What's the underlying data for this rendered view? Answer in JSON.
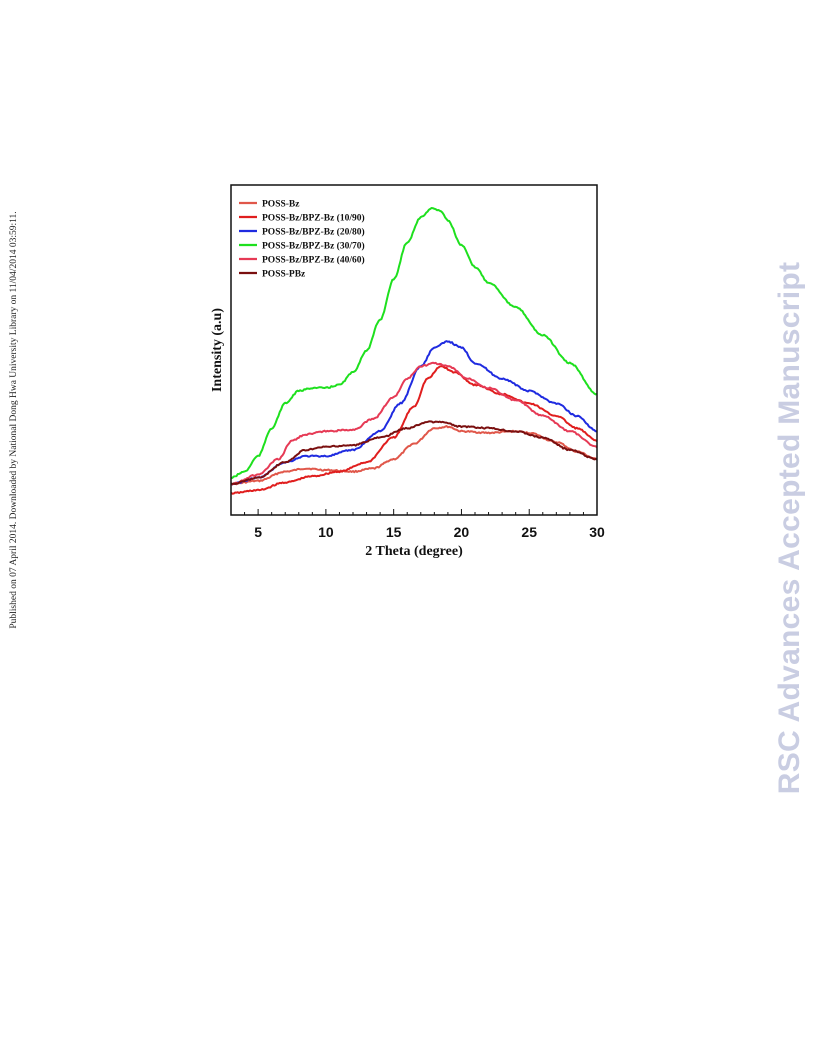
{
  "side_note": "Published on 07 April 2014. Downloaded by National Dong Hwa University Library on 11/04/2014 03:59:11.",
  "watermark": "RSC Advances Accepted Manuscript",
  "chart_data": {
    "type": "line",
    "title": "",
    "xlabel": "2 Theta (degree)",
    "ylabel": "Intensity (a.u)",
    "xlim": [
      3,
      30
    ],
    "ylim": [
      0,
      100
    ],
    "xticks": [
      5,
      10,
      15,
      20,
      25,
      30
    ],
    "yticks_shown": false,
    "legend_position": "top-left",
    "series": [
      {
        "name": "POSS-Bz",
        "color": "#e0574a",
        "points": [
          [
            3,
            10
          ],
          [
            5,
            11
          ],
          [
            7,
            14
          ],
          [
            8.5,
            15
          ],
          [
            10,
            14.5
          ],
          [
            12,
            14
          ],
          [
            13.5,
            15
          ],
          [
            15,
            18
          ],
          [
            16.5,
            23
          ],
          [
            18,
            28
          ],
          [
            19,
            28.5
          ],
          [
            20,
            27
          ],
          [
            22,
            26.5
          ],
          [
            24,
            27
          ],
          [
            25,
            26.5
          ],
          [
            27,
            23.5
          ],
          [
            28.5,
            20.5
          ],
          [
            30,
            18
          ]
        ]
      },
      {
        "name": "POSS-Bz/BPZ-Bz (10/90)",
        "color": "#e01e1e",
        "points": [
          [
            3,
            7
          ],
          [
            5,
            8
          ],
          [
            7,
            10.5
          ],
          [
            9,
            12.5
          ],
          [
            11,
            14
          ],
          [
            13,
            17
          ],
          [
            15,
            25
          ],
          [
            16.5,
            35
          ],
          [
            17.5,
            44
          ],
          [
            18.5,
            48
          ],
          [
            19.5,
            46
          ],
          [
            21,
            42
          ],
          [
            23,
            39
          ],
          [
            25,
            36
          ],
          [
            27,
            32
          ],
          [
            28.5,
            28
          ],
          [
            30,
            24
          ]
        ]
      },
      {
        "name": "POSS-Bz/BPZ-Bz (20/80)",
        "color": "#1f2be0",
        "points": [
          [
            3,
            10
          ],
          [
            5,
            12
          ],
          [
            7,
            17
          ],
          [
            8.5,
            19
          ],
          [
            10,
            19
          ],
          [
            12,
            21
          ],
          [
            14,
            27
          ],
          [
            15.5,
            36
          ],
          [
            17,
            48
          ],
          [
            18,
            54
          ],
          [
            19,
            56
          ],
          [
            20,
            54
          ],
          [
            21,
            49
          ],
          [
            23,
            44
          ],
          [
            25,
            40
          ],
          [
            27,
            36
          ],
          [
            28.5,
            32
          ],
          [
            30,
            27
          ]
        ]
      },
      {
        "name": "POSS-Bz/BPZ-Bz (30/70)",
        "color": "#1ee01e",
        "points": [
          [
            3,
            12
          ],
          [
            4,
            14
          ],
          [
            5,
            19
          ],
          [
            6,
            28
          ],
          [
            7,
            36
          ],
          [
            8,
            40
          ],
          [
            9,
            41
          ],
          [
            10,
            41
          ],
          [
            11,
            42
          ],
          [
            12,
            46
          ],
          [
            13,
            53
          ],
          [
            14,
            63
          ],
          [
            15,
            76
          ],
          [
            16,
            88
          ],
          [
            17,
            96
          ],
          [
            17.8,
            99
          ],
          [
            18.5,
            98
          ],
          [
            19,
            95
          ],
          [
            20,
            87
          ],
          [
            21,
            80
          ],
          [
            22,
            75
          ],
          [
            24,
            67
          ],
          [
            26,
            58
          ],
          [
            28,
            49
          ],
          [
            30,
            39
          ]
        ]
      },
      {
        "name": "POSS-Bz/BPZ-Bz (40/60)",
        "color": "#e63a55",
        "points": [
          [
            3,
            10
          ],
          [
            5,
            13
          ],
          [
            6.5,
            18
          ],
          [
            7.5,
            24
          ],
          [
            8.5,
            26
          ],
          [
            10,
            27
          ],
          [
            12,
            27.5
          ],
          [
            13.5,
            31
          ],
          [
            15,
            38
          ],
          [
            16,
            44
          ],
          [
            17,
            48
          ],
          [
            18,
            49
          ],
          [
            19,
            48
          ],
          [
            20.5,
            44
          ],
          [
            22,
            41
          ],
          [
            24,
            37
          ],
          [
            26,
            32
          ],
          [
            28,
            27
          ],
          [
            30,
            22
          ]
        ]
      },
      {
        "name": "POSS-PBz",
        "color": "#7a0f0f",
        "points": [
          [
            3,
            10
          ],
          [
            5,
            12
          ],
          [
            7,
            17
          ],
          [
            8.5,
            21
          ],
          [
            10,
            22
          ],
          [
            12,
            22.5
          ],
          [
            14,
            25
          ],
          [
            16,
            28
          ],
          [
            17.5,
            30
          ],
          [
            18.5,
            30
          ],
          [
            20,
            28.5
          ],
          [
            22,
            28
          ],
          [
            24,
            27
          ],
          [
            26,
            25
          ],
          [
            28,
            21
          ],
          [
            30,
            18
          ]
        ]
      }
    ]
  }
}
